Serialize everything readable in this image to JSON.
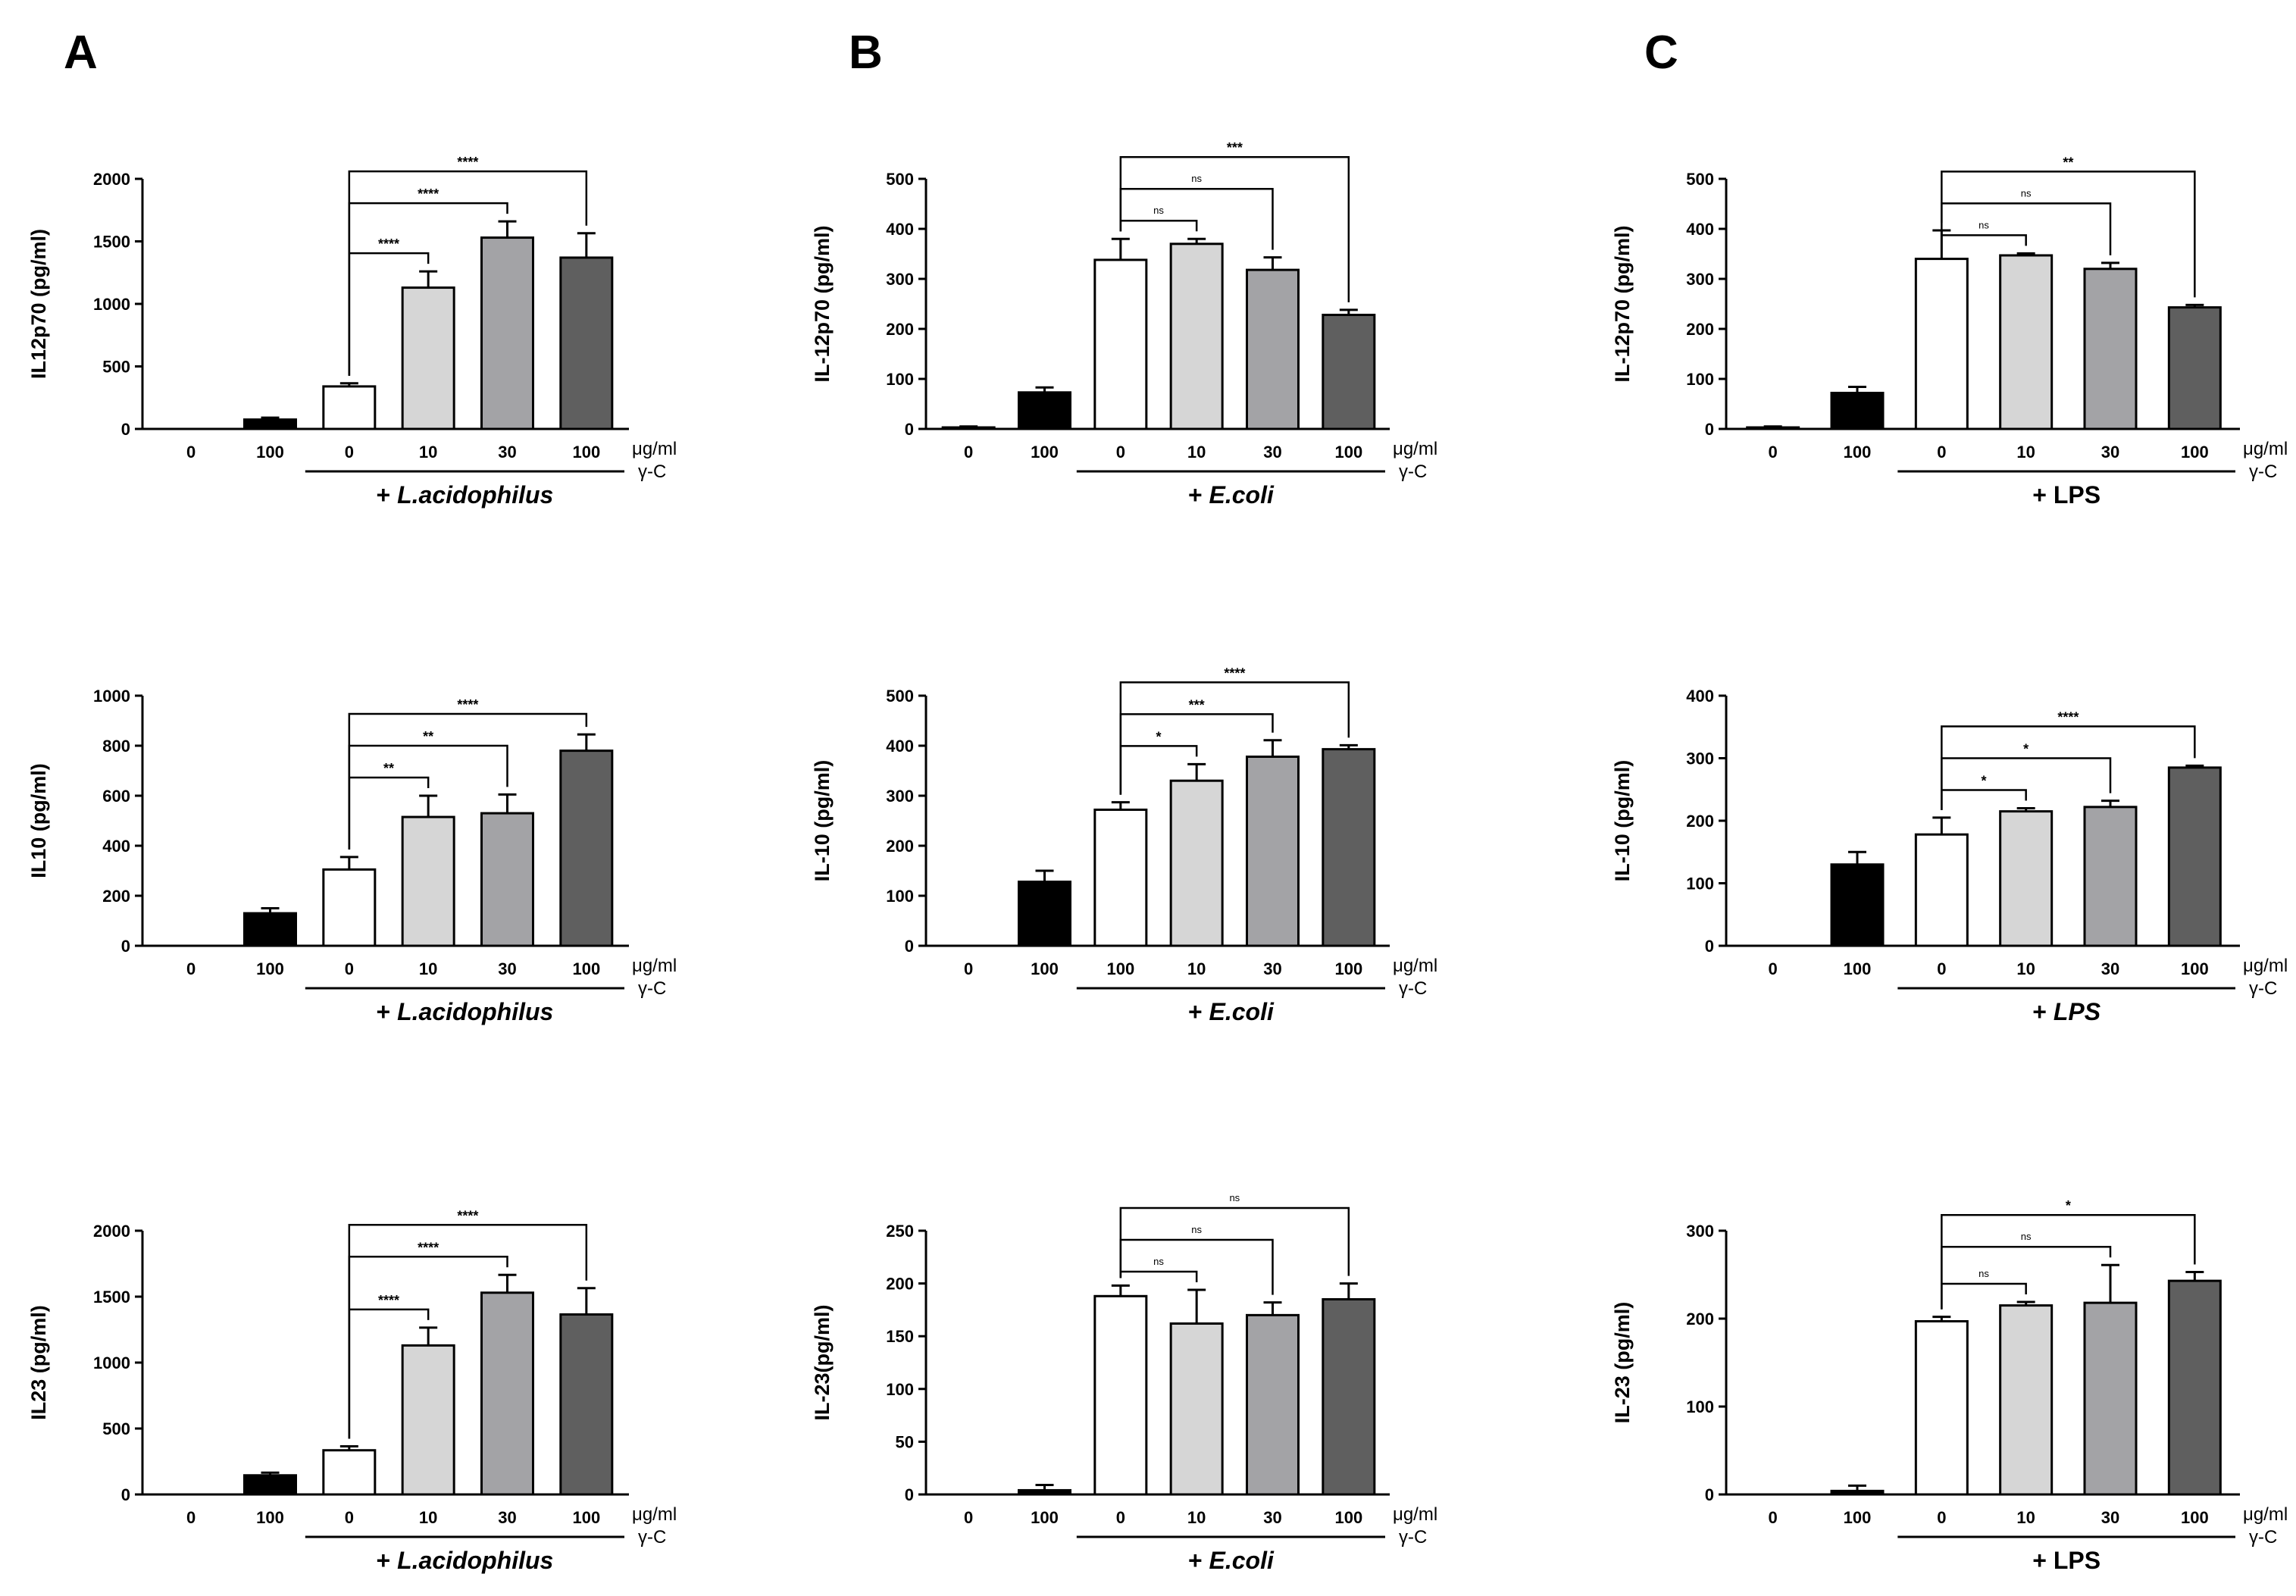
{
  "panel_letters": [
    "A",
    "B",
    "C"
  ],
  "chart_data": [
    {
      "type": "bar",
      "column": 0,
      "row": 0,
      "ylabel": "IL12p70 (pg/ml)",
      "ylim": [
        0,
        2000
      ],
      "yticks": [
        0,
        500,
        1000,
        1500,
        2000
      ],
      "categories": [
        "0",
        "100",
        "0",
        "10",
        "30",
        "100"
      ],
      "values": [
        0,
        75,
        340,
        1130,
        1530,
        1370
      ],
      "errors": [
        0,
        15,
        25,
        130,
        130,
        195
      ],
      "fills": [
        "#ffffff",
        "#000000",
        "#ffffff",
        "#d6d6d6",
        "#a3a3a6",
        "#5f5f5f"
      ],
      "unit_label": "μg/ml",
      "gamma_label": "γ-C",
      "treatment": {
        "prefix": "+ ",
        "name": "L.acidophilus",
        "italic": true
      },
      "treatment_bar_index": 2,
      "comparisons": [
        {
          "from": 2,
          "to": 3,
          "label": "****"
        },
        {
          "from": 2,
          "to": 4,
          "label": "****"
        },
        {
          "from": 2,
          "to": 5,
          "label": "****"
        }
      ]
    },
    {
      "type": "bar",
      "column": 0,
      "row": 1,
      "ylabel": "IL10 (pg/ml)",
      "ylim": [
        0,
        1000
      ],
      "yticks": [
        0,
        200,
        400,
        600,
        800,
        1000
      ],
      "categories": [
        "0",
        "100",
        "0",
        "10",
        "30",
        "100"
      ],
      "values": [
        0,
        130,
        305,
        515,
        530,
        780
      ],
      "errors": [
        0,
        20,
        50,
        85,
        75,
        65
      ],
      "fills": [
        "#ffffff",
        "#000000",
        "#ffffff",
        "#d6d6d6",
        "#a3a3a6",
        "#5f5f5f"
      ],
      "unit_label": "μg/ml",
      "gamma_label": "γ-C",
      "treatment": {
        "prefix": "+ ",
        "name": "L.acidophilus",
        "italic": true
      },
      "treatment_bar_index": 2,
      "comparisons": [
        {
          "from": 2,
          "to": 3,
          "label": "**"
        },
        {
          "from": 2,
          "to": 4,
          "label": "**"
        },
        {
          "from": 2,
          "to": 5,
          "label": "****"
        }
      ]
    },
    {
      "type": "bar",
      "column": 0,
      "row": 2,
      "ylabel": "IL23 (pg/ml)",
      "ylim": [
        0,
        2000
      ],
      "yticks": [
        0,
        500,
        1000,
        1500,
        2000
      ],
      "categories": [
        "0",
        "100",
        "0",
        "10",
        "30",
        "100"
      ],
      "values": [
        0,
        145,
        335,
        1130,
        1530,
        1365
      ],
      "errors": [
        0,
        20,
        30,
        135,
        135,
        200
      ],
      "fills": [
        "#ffffff",
        "#000000",
        "#ffffff",
        "#d6d6d6",
        "#a3a3a6",
        "#5f5f5f"
      ],
      "unit_label": "μg/ml",
      "gamma_label": "γ-C",
      "treatment": {
        "prefix": "+ ",
        "name": "L.acidophilus",
        "italic": true
      },
      "treatment_bar_index": 2,
      "comparisons": [
        {
          "from": 2,
          "to": 3,
          "label": "****"
        },
        {
          "from": 2,
          "to": 4,
          "label": "****"
        },
        {
          "from": 2,
          "to": 5,
          "label": "****"
        }
      ]
    },
    {
      "type": "bar",
      "column": 1,
      "row": 0,
      "ylabel": "IL-12p70 (pg/ml)",
      "ylim": [
        0,
        500
      ],
      "yticks": [
        0,
        100,
        200,
        300,
        400,
        500
      ],
      "categories": [
        "0",
        "100",
        "0",
        "10",
        "30",
        "100"
      ],
      "values": [
        3,
        73,
        338,
        370,
        318,
        228
      ],
      "errors": [
        2,
        10,
        42,
        10,
        25,
        10
      ],
      "fills": [
        "#ffffff",
        "#000000",
        "#ffffff",
        "#d6d6d6",
        "#a3a3a6",
        "#5f5f5f"
      ],
      "unit_label": "μg/ml",
      "gamma_label": "γ-C",
      "treatment": {
        "prefix": "+ ",
        "name": "E.coli",
        "italic": true
      },
      "treatment_bar_index": 2,
      "comparisons": [
        {
          "from": 2,
          "to": 3,
          "label": "ns"
        },
        {
          "from": 2,
          "to": 4,
          "label": "ns"
        },
        {
          "from": 2,
          "to": 5,
          "label": "***"
        }
      ]
    },
    {
      "type": "bar",
      "column": 1,
      "row": 1,
      "ylabel": "IL-10 (pg/ml)",
      "ylim": [
        0,
        500
      ],
      "yticks": [
        0,
        100,
        200,
        300,
        400,
        500
      ],
      "categories": [
        "0",
        "100",
        "100",
        "10",
        "30",
        "100"
      ],
      "values": [
        0,
        128,
        272,
        330,
        378,
        393
      ],
      "errors": [
        0,
        22,
        15,
        33,
        33,
        8
      ],
      "fills": [
        "#ffffff",
        "#000000",
        "#ffffff",
        "#d6d6d6",
        "#a3a3a6",
        "#5f5f5f"
      ],
      "unit_label": "μg/ml",
      "gamma_label": "γ-C",
      "treatment": {
        "prefix": "+ ",
        "name": "E.coli",
        "italic": true
      },
      "treatment_bar_index": 2,
      "comparisons": [
        {
          "from": 2,
          "to": 3,
          "label": "*"
        },
        {
          "from": 2,
          "to": 4,
          "label": "***"
        },
        {
          "from": 2,
          "to": 5,
          "label": "****"
        }
      ]
    },
    {
      "type": "bar",
      "column": 1,
      "row": 2,
      "ylabel": "IL-23(pg/ml)",
      "ylim": [
        0,
        250
      ],
      "yticks": [
        0,
        50,
        100,
        150,
        200,
        250
      ],
      "categories": [
        "0",
        "100",
        "0",
        "10",
        "30",
        "100"
      ],
      "values": [
        0,
        4,
        188,
        162,
        170,
        185
      ],
      "errors": [
        0,
        5,
        10,
        32,
        12,
        15
      ],
      "fills": [
        "#ffffff",
        "#000000",
        "#ffffff",
        "#d6d6d6",
        "#a3a3a6",
        "#5f5f5f"
      ],
      "unit_label": "μg/ml",
      "gamma_label": "γ-C",
      "treatment": {
        "prefix": "+ ",
        "name": "E.coli",
        "italic": true
      },
      "treatment_bar_index": 2,
      "comparisons": [
        {
          "from": 2,
          "to": 3,
          "label": "ns"
        },
        {
          "from": 2,
          "to": 4,
          "label": "ns"
        },
        {
          "from": 2,
          "to": 5,
          "label": "ns"
        }
      ]
    },
    {
      "type": "bar",
      "column": 2,
      "row": 0,
      "ylabel": "IL-12p70 (pg/ml)",
      "ylim": [
        0,
        500
      ],
      "yticks": [
        0,
        100,
        200,
        300,
        400,
        500
      ],
      "categories": [
        "0",
        "100",
        "0",
        "10",
        "30",
        "100"
      ],
      "values": [
        3,
        72,
        340,
        347,
        320,
        243
      ],
      "errors": [
        2,
        12,
        57,
        4,
        12,
        5
      ],
      "fills": [
        "#ffffff",
        "#000000",
        "#ffffff",
        "#d6d6d6",
        "#a3a3a6",
        "#5f5f5f"
      ],
      "unit_label": "μg/ml",
      "gamma_label": "γ-C",
      "treatment": {
        "prefix": "+ ",
        "name": "LPS",
        "italic": false
      },
      "treatment_bar_index": 2,
      "comparisons": [
        {
          "from": 2,
          "to": 3,
          "label": "ns"
        },
        {
          "from": 2,
          "to": 4,
          "label": "ns"
        },
        {
          "from": 2,
          "to": 5,
          "label": "**"
        }
      ]
    },
    {
      "type": "bar",
      "column": 2,
      "row": 1,
      "ylabel": "IL-10 (pg/ml)",
      "ylim": [
        0,
        400
      ],
      "yticks": [
        0,
        100,
        200,
        300,
        400
      ],
      "categories": [
        "0",
        "100",
        "0",
        "10",
        "30",
        "100"
      ],
      "values": [
        0,
        130,
        178,
        215,
        222,
        285
      ],
      "errors": [
        0,
        20,
        27,
        5,
        10,
        3
      ],
      "fills": [
        "#ffffff",
        "#000000",
        "#ffffff",
        "#d6d6d6",
        "#a3a3a6",
        "#5f5f5f"
      ],
      "unit_label": "μg/ml",
      "gamma_label": "γ-C",
      "treatment": {
        "prefix": "+ ",
        "name": "LPS",
        "italic": true
      },
      "treatment_bar_index": 2,
      "comparisons": [
        {
          "from": 2,
          "to": 3,
          "label": "*"
        },
        {
          "from": 2,
          "to": 4,
          "label": "*"
        },
        {
          "from": 2,
          "to": 5,
          "label": "****"
        }
      ]
    },
    {
      "type": "bar",
      "column": 2,
      "row": 2,
      "ylabel": "IL-23 (pg/ml)",
      "ylim": [
        0,
        300
      ],
      "yticks": [
        0,
        100,
        200,
        300
      ],
      "categories": [
        "0",
        "100",
        "0",
        "10",
        "30",
        "100"
      ],
      "values": [
        0,
        4,
        197,
        215,
        218,
        243
      ],
      "errors": [
        0,
        6,
        5,
        4,
        43,
        10
      ],
      "fills": [
        "#ffffff",
        "#000000",
        "#ffffff",
        "#d6d6d6",
        "#a3a3a6",
        "#5f5f5f"
      ],
      "unit_label": "μg/ml",
      "gamma_label": "γ-C",
      "treatment": {
        "prefix": "+ ",
        "name": "LPS",
        "italic": false
      },
      "treatment_bar_index": 2,
      "comparisons": [
        {
          "from": 2,
          "to": 3,
          "label": "ns"
        },
        {
          "from": 2,
          "to": 4,
          "label": "ns"
        },
        {
          "from": 2,
          "to": 5,
          "label": "*"
        }
      ]
    }
  ]
}
